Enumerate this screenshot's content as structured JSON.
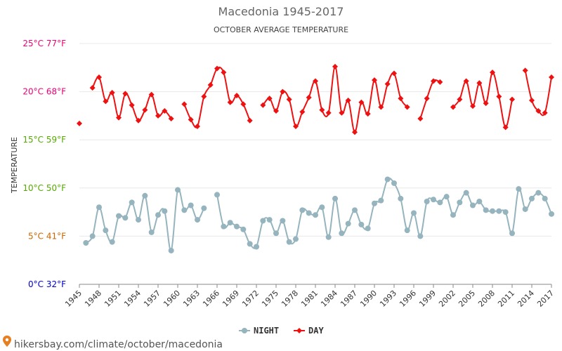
{
  "colors": {
    "night": "#95b4be",
    "day": "#ee1111",
    "grid": "#e8e8e8",
    "axis": "#888888",
    "ytick_colors": [
      "#0000cc",
      "#cc6600",
      "#55aa00",
      "#55aa00",
      "#ee0077",
      "#ee0077"
    ],
    "source_pin": "#e67e22"
  },
  "source": {
    "text": "hikersbay.com/climate/october/macedonia",
    "icon": "map-pin-icon"
  },
  "chart_data": {
    "type": "line",
    "title": "Macedonia 1945-2017",
    "subtitle": "OCTOBER AVERAGE TEMPERATURE",
    "ylabel": "TEMPERATURE",
    "xlabel": "",
    "xlim": [
      1945,
      2017
    ],
    "ylim": [
      0,
      25
    ],
    "yticks": [
      {
        "value": 0,
        "label": "0°C 32°F"
      },
      {
        "value": 5,
        "label": "5°C 41°F"
      },
      {
        "value": 10,
        "label": "10°C 50°F"
      },
      {
        "value": 15,
        "label": "15°C 59°F"
      },
      {
        "value": 20,
        "label": "20°C 68°F"
      },
      {
        "value": 25,
        "label": "25°C 77°F"
      }
    ],
    "xticks": [
      "1945",
      "1948",
      "1951",
      "1954",
      "1957",
      "1960",
      "1963",
      "1966",
      "1969",
      "1972",
      "1975",
      "1978",
      "1981",
      "1984",
      "1987",
      "1990",
      "1993",
      "1996",
      "1999",
      "2002",
      "2005",
      "2008",
      "2011",
      "2014",
      "2017"
    ],
    "grid": true,
    "legend_position": "bottom",
    "x": [
      1945,
      1946,
      1947,
      1948,
      1949,
      1950,
      1951,
      1952,
      1953,
      1954,
      1955,
      1956,
      1957,
      1958,
      1959,
      1960,
      1961,
      1962,
      1963,
      1964,
      1965,
      1966,
      1967,
      1968,
      1969,
      1970,
      1971,
      1972,
      1973,
      1974,
      1975,
      1976,
      1977,
      1978,
      1979,
      1980,
      1981,
      1982,
      1983,
      1984,
      1985,
      1986,
      1987,
      1988,
      1989,
      1990,
      1991,
      1992,
      1993,
      1994,
      1995,
      1996,
      1997,
      1998,
      1999,
      2000,
      2001,
      2002,
      2003,
      2004,
      2005,
      2006,
      2007,
      2008,
      2009,
      2010,
      2011,
      2012,
      2013,
      2014,
      2015,
      2016,
      2017
    ],
    "series": [
      {
        "name": "NIGHT",
        "values": [
          null,
          4.3,
          5.0,
          8.0,
          5.6,
          4.4,
          7.1,
          6.9,
          8.5,
          6.7,
          9.2,
          5.4,
          7.2,
          7.6,
          3.5,
          9.8,
          7.7,
          8.2,
          6.7,
          7.9,
          null,
          9.3,
          6.0,
          6.4,
          6.0,
          5.7,
          4.2,
          3.9,
          6.6,
          6.7,
          5.3,
          6.6,
          4.4,
          4.7,
          7.7,
          7.4,
          7.2,
          8.0,
          4.9,
          8.9,
          5.3,
          6.3,
          7.7,
          6.2,
          5.8,
          8.4,
          8.7,
          10.9,
          10.5,
          8.9,
          5.6,
          7.4,
          5.0,
          8.6,
          8.8,
          8.5,
          9.1,
          7.2,
          8.5,
          9.5,
          8.2,
          8.6,
          7.7,
          7.6,
          7.6,
          7.5,
          5.3,
          9.9,
          7.8,
          8.9,
          9.5,
          8.9,
          7.3
        ]
      },
      {
        "name": "DAY",
        "values": [
          16.7,
          null,
          20.4,
          21.5,
          19.0,
          19.9,
          17.3,
          19.8,
          18.6,
          17.0,
          18.1,
          19.7,
          17.5,
          18.0,
          17.2,
          null,
          18.7,
          17.1,
          16.4,
          19.5,
          20.7,
          22.4,
          22.0,
          18.9,
          19.6,
          18.7,
          17.0,
          null,
          18.6,
          19.3,
          18.0,
          20.0,
          19.2,
          16.4,
          17.9,
          19.4,
          21.1,
          18.1,
          17.8,
          22.6,
          17.8,
          19.1,
          15.8,
          18.9,
          17.7,
          21.2,
          18.4,
          20.8,
          21.9,
          19.3,
          18.4,
          null,
          17.2,
          19.3,
          21.1,
          21.0,
          null,
          18.4,
          19.2,
          21.1,
          18.5,
          20.9,
          18.8,
          22.0,
          19.5,
          16.3,
          19.2,
          null,
          22.2,
          19.1,
          18.0,
          17.8,
          21.5
        ]
      }
    ]
  }
}
